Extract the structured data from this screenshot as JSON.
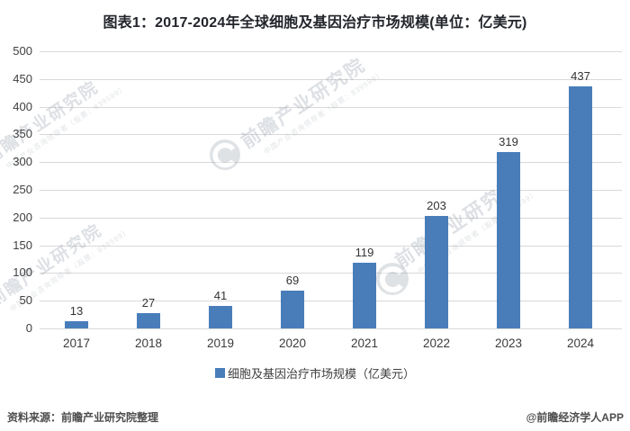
{
  "title": "图表1：2017-2024年全球细胞及基因治疗市场规模(单位：亿美元)",
  "chart_data": {
    "type": "bar",
    "categories": [
      "2017",
      "2018",
      "2019",
      "2020",
      "2021",
      "2022",
      "2023",
      "2024"
    ],
    "values": [
      13,
      27,
      41,
      69,
      119,
      203,
      319,
      437
    ],
    "series_name": "细胞及基因治疗市场规模（亿美元）",
    "title": "图表1：2017-2024年全球细胞及基因治疗市场规模(单位：亿美元)",
    "xlabel": "",
    "ylabel": "",
    "unit": "亿美元",
    "ylim": [
      0,
      500
    ],
    "y_ticks": [
      0,
      50,
      100,
      150,
      200,
      250,
      300,
      350,
      400,
      450,
      500
    ],
    "grid": true,
    "legend_position": "bottom",
    "bar_color": "#497DBA",
    "grid_color": "#d9d9d9"
  },
  "legend": {
    "label": "细胞及基因治疗市场规模（亿美元）"
  },
  "footer": {
    "source": "资料来源：前瞻产业研究院整理",
    "credit": "@前瞻经济学人APP"
  },
  "watermark": {
    "text": "前瞻产业研究院",
    "subtext": "中国产业咨询领导者（股票：839599）"
  }
}
